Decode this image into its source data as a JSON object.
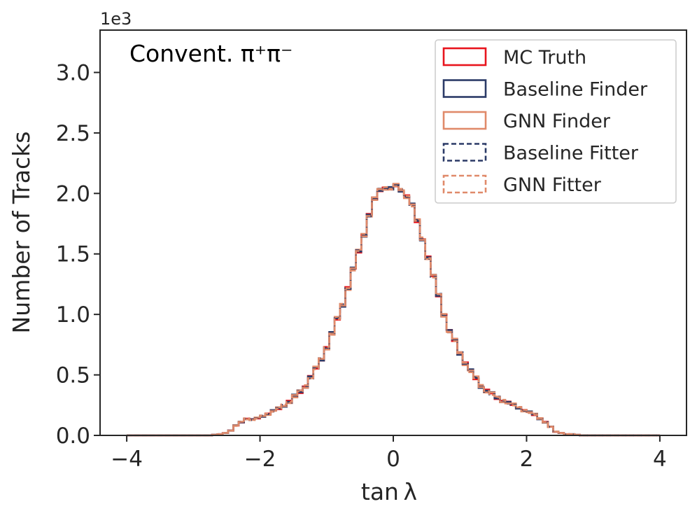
{
  "chart_data": {
    "type": "histogram",
    "xlabel": "tan λ",
    "ylabel": "Number of Tracks",
    "xlim": [
      -4.4,
      4.4
    ],
    "ylim": [
      0,
      3.35
    ],
    "y_offset_text": "1e3",
    "annotation": "Convent. π⁺π⁻",
    "x_ticks": [
      -4,
      -2,
      0,
      2,
      4
    ],
    "x_tick_labels": [
      "−4",
      "−2",
      "0",
      "2",
      "4"
    ],
    "y_ticks": [
      0.0,
      0.5,
      1.0,
      1.5,
      2.0,
      2.5,
      3.0
    ],
    "y_tick_labels": [
      "0.0",
      "0.5",
      "1.0",
      "1.5",
      "2.0",
      "2.5",
      "3.0"
    ],
    "bin_edges_range": [
      -4,
      4
    ],
    "bin_count": 100,
    "base_values": [
      0,
      0,
      0,
      0,
      0,
      0,
      0,
      0,
      0,
      0,
      0,
      0,
      0,
      0,
      0,
      0,
      0.005,
      0.01,
      0.02,
      0.04,
      0.08,
      0.11,
      0.14,
      0.13,
      0.14,
      0.16,
      0.18,
      0.2,
      0.22,
      0.25,
      0.28,
      0.32,
      0.36,
      0.41,
      0.48,
      0.55,
      0.63,
      0.73,
      0.84,
      0.96,
      1.08,
      1.22,
      1.37,
      1.52,
      1.66,
      1.82,
      1.95,
      2.03,
      2.05,
      2.04,
      2.06,
      2.03,
      1.98,
      1.9,
      1.77,
      1.63,
      1.47,
      1.31,
      1.16,
      1.0,
      0.86,
      0.78,
      0.68,
      0.6,
      0.53,
      0.47,
      0.41,
      0.37,
      0.34,
      0.31,
      0.29,
      0.27,
      0.25,
      0.23,
      0.21,
      0.19,
      0.17,
      0.14,
      0.11,
      0.07,
      0.03,
      0.02,
      0.01,
      0.01,
      0.005,
      0,
      0,
      0,
      0,
      0,
      0,
      0,
      0,
      0,
      0,
      0,
      0,
      0,
      0,
      0
    ],
    "series": [
      {
        "name": "MC Truth",
        "color": "#e8141d",
        "style": "solid",
        "jitter": 0.012
      },
      {
        "name": "Baseline Finder",
        "color": "#2b3a67",
        "style": "solid",
        "jitter": -0.018
      },
      {
        "name": "GNN Finder",
        "color": "#e08a6a",
        "style": "solid",
        "jitter": 0.02
      },
      {
        "name": "Baseline Fitter",
        "color": "#2b3a67",
        "style": "dashed",
        "jitter": -0.01
      },
      {
        "name": "GNN Fitter",
        "color": "#e08a6a",
        "style": "dashed",
        "jitter": 0.008
      }
    ],
    "legend_position": "top-right"
  }
}
